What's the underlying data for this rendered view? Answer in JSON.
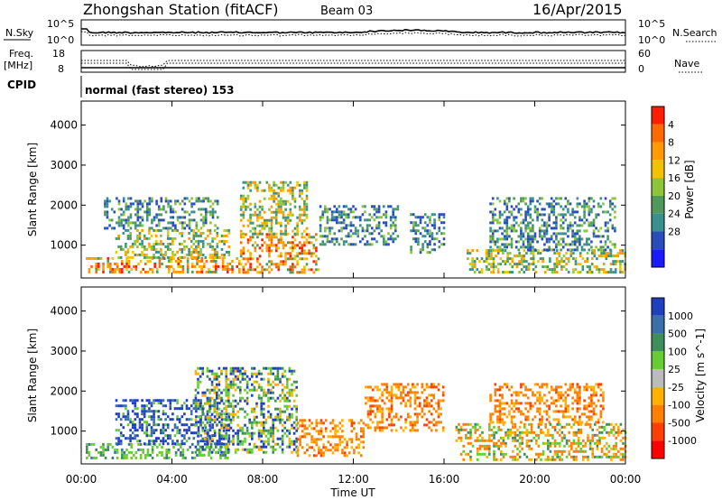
{
  "header": {
    "station": "Zhongshan Station (fitACF)",
    "beam": "Beam 03",
    "date": "16/Apr/2015"
  },
  "small_panels": {
    "nsky_label": "N.Sky",
    "nsearch_label": "N.Search",
    "noise_ticks": [
      "10^5",
      "10^0"
    ],
    "freq_label_1": "Freq.",
    "freq_label_2": "[MHz]",
    "freq_ticks": [
      "18",
      "8"
    ],
    "nave_ticks": [
      "60",
      "0"
    ],
    "nave_label": "Nave",
    "cpid_label": "CPID",
    "cpid_text": "normal (fast stereo) 153"
  },
  "x_axis": {
    "label": "Time UT",
    "ticks": [
      "00:00",
      "04:00",
      "08:00",
      "12:00",
      "16:00",
      "20:00",
      "00:00"
    ],
    "range_hours": [
      0,
      24
    ]
  },
  "chart_data": [
    {
      "type": "heatmap",
      "quantity": "Power",
      "xlabel": "Time UT",
      "ylabel": "Slant Range [km]",
      "xlim": [
        0,
        24
      ],
      "ylim": [
        180,
        4600
      ],
      "yticks": [
        1000,
        2000,
        3000,
        4000
      ],
      "colorbar": {
        "label": "Power [dB]",
        "range": [
          0,
          32
        ],
        "ticks": [
          "4",
          "8",
          "12",
          "16",
          "20",
          "24",
          "28"
        ],
        "colors": [
          "#1a1aff",
          "#2a4dbd",
          "#3a8f8f",
          "#4f9a5a",
          "#8cc43a",
          "#f2c200",
          "#ff9a00",
          "#ff6a00",
          "#ff1e00"
        ]
      },
      "regions": [
        {
          "t": [
            0.2,
            7.0
          ],
          "r": [
            300,
            700
          ],
          "level": "high"
        },
        {
          "t": [
            1.5,
            6.5
          ],
          "r": [
            700,
            1400
          ],
          "level": "mid"
        },
        {
          "t": [
            1.0,
            6.0
          ],
          "r": [
            1400,
            2200
          ],
          "level": "low"
        },
        {
          "t": [
            7.0,
            10.5
          ],
          "r": [
            300,
            1300
          ],
          "level": "high"
        },
        {
          "t": [
            7.0,
            10.0
          ],
          "r": [
            1300,
            2600
          ],
          "level": "mid"
        },
        {
          "t": [
            10.5,
            14.0
          ],
          "r": [
            1000,
            2000
          ],
          "level": "low"
        },
        {
          "t": [
            14.5,
            16.0
          ],
          "r": [
            800,
            1800
          ],
          "level": "low"
        },
        {
          "t": [
            17.0,
            24.0
          ],
          "r": [
            300,
            900
          ],
          "level": "mid"
        },
        {
          "t": [
            18.0,
            23.5
          ],
          "r": [
            900,
            2200
          ],
          "level": "low"
        }
      ]
    },
    {
      "type": "heatmap",
      "quantity": "Velocity",
      "xlabel": "Time UT",
      "ylabel": "Slant Range [km]",
      "xlim": [
        0,
        24
      ],
      "ylim": [
        180,
        4600
      ],
      "yticks": [
        1000,
        2000,
        3000,
        4000
      ],
      "colorbar": {
        "label": "Velocity [m s^-1]",
        "ticks": [
          "1000",
          "500",
          "100",
          "25",
          "-25",
          "-100",
          "-500",
          "-1000"
        ],
        "colors": [
          "#1f3fbf",
          "#3a6fa8",
          "#3f8f5a",
          "#66cc33",
          "#bbbbbb",
          "#ffb000",
          "#ff7f00",
          "#ff4000",
          "#ff0000"
        ]
      },
      "regions": [
        {
          "t": [
            0.2,
            6.5
          ],
          "r": [
            300,
            700
          ],
          "level": "green"
        },
        {
          "t": [
            1.5,
            6.5
          ],
          "r": [
            700,
            1800
          ],
          "level": "blue"
        },
        {
          "t": [
            5.0,
            9.5
          ],
          "r": [
            500,
            2600
          ],
          "level": "mix"
        },
        {
          "t": [
            9.5,
            12.5
          ],
          "r": [
            400,
            1300
          ],
          "level": "orange"
        },
        {
          "t": [
            12.5,
            16.0
          ],
          "r": [
            1000,
            2200
          ],
          "level": "orange"
        },
        {
          "t": [
            16.5,
            24.0
          ],
          "r": [
            300,
            1200
          ],
          "level": "orange-green"
        },
        {
          "t": [
            18.0,
            23.0
          ],
          "r": [
            1200,
            2200
          ],
          "level": "orange"
        }
      ]
    }
  ]
}
